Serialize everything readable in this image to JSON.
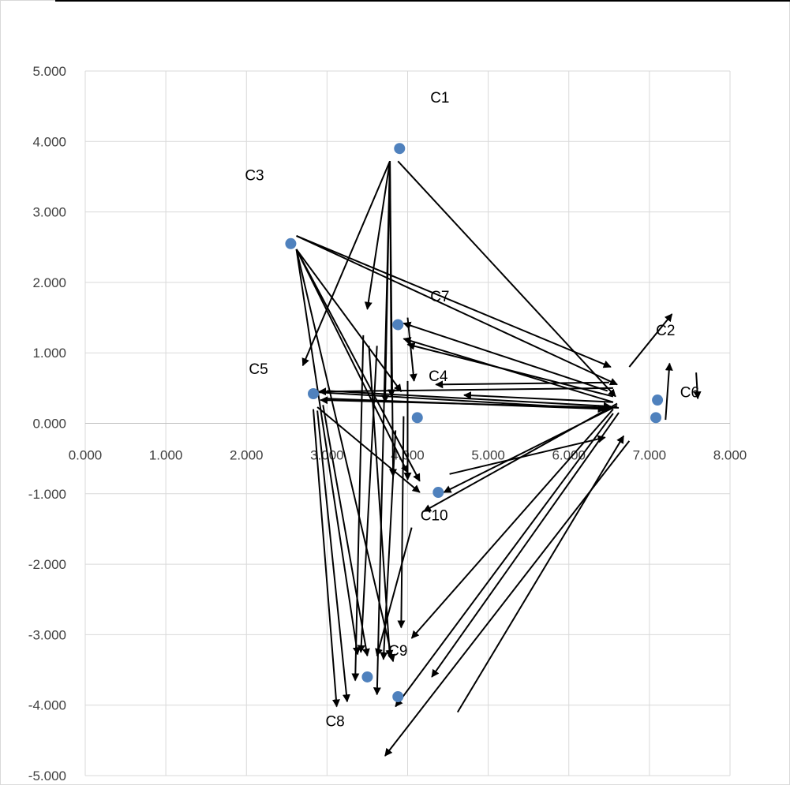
{
  "chart_data": {
    "type": "scatter",
    "title": "",
    "xlabel": "",
    "ylabel": "",
    "xlim": [
      0,
      8
    ],
    "ylim": [
      -5,
      5
    ],
    "x_ticks": [
      0,
      1,
      2,
      3,
      4,
      5,
      6,
      7,
      8
    ],
    "x_tick_labels": [
      "0.000",
      "1.000",
      "2.000",
      "3.000",
      "4.000",
      "5.000",
      "6.000",
      "7.000",
      "8.000"
    ],
    "y_ticks": [
      5,
      4,
      3,
      2,
      1,
      0,
      -1,
      -2,
      -3,
      -4,
      -5
    ],
    "y_tick_labels": [
      "5.000",
      "4.000",
      "3.000",
      "2.000",
      "1.000",
      "0.000",
      "-1.000",
      "-2.000",
      "-3.000",
      "-4.000",
      "-5.000"
    ],
    "grid": true,
    "legend": "none",
    "marker_color": "#4f81bd",
    "arrow_color": "#000000",
    "points": [
      {
        "x": 3.9,
        "y": 3.9
      },
      {
        "x": 2.55,
        "y": 2.55
      },
      {
        "x": 3.88,
        "y": 1.4
      },
      {
        "x": 2.83,
        "y": 0.42
      },
      {
        "x": 4.12,
        "y": 0.08
      },
      {
        "x": 4.38,
        "y": -0.98
      },
      {
        "x": 7.1,
        "y": 0.33
      },
      {
        "x": 7.08,
        "y": 0.08
      },
      {
        "x": 3.5,
        "y": -3.6
      },
      {
        "x": 3.88,
        "y": -3.88
      }
    ],
    "labels": [
      {
        "text": "C1",
        "x": 4.4,
        "y": 4.55
      },
      {
        "text": "C3",
        "x": 2.1,
        "y": 3.45
      },
      {
        "text": "C7",
        "x": 4.4,
        "y": 1.73
      },
      {
        "text": "C2",
        "x": 7.2,
        "y": 1.25
      },
      {
        "text": "C5",
        "x": 2.15,
        "y": 0.7
      },
      {
        "text": "C4",
        "x": 4.38,
        "y": 0.6
      },
      {
        "text": "C6",
        "x": 7.5,
        "y": 0.37
      },
      {
        "text": "C10",
        "x": 4.33,
        "y": -1.38
      },
      {
        "text": "C9",
        "x": 3.88,
        "y": -3.3
      },
      {
        "text": "C8",
        "x": 3.1,
        "y": -4.3
      }
    ],
    "arrows": [
      {
        "from": [
          3.78,
          3.72
        ],
        "to": [
          2.7,
          0.82
        ]
      },
      {
        "from": [
          3.78,
          3.72
        ],
        "to": [
          3.5,
          1.62
        ]
      },
      {
        "from": [
          3.78,
          3.72
        ],
        "to": [
          3.8,
          0.38
        ]
      },
      {
        "from": [
          3.78,
          3.72
        ],
        "to": [
          3.72,
          0.3
        ]
      },
      {
        "from": [
          3.78,
          3.72
        ],
        "to": [
          3.82,
          -0.75
        ]
      },
      {
        "from": [
          3.78,
          3.72
        ],
        "to": [
          3.62,
          -3.85
        ]
      },
      {
        "from": [
          3.88,
          3.72
        ],
        "to": [
          6.58,
          0.38
        ]
      },
      {
        "from": [
          2.62,
          2.66
        ],
        "to": [
          6.52,
          0.8
        ]
      },
      {
        "from": [
          2.62,
          2.66
        ],
        "to": [
          6.6,
          0.55
        ]
      },
      {
        "from": [
          2.62,
          2.47
        ],
        "to": [
          4.0,
          -0.7
        ]
      },
      {
        "from": [
          2.62,
          2.47
        ],
        "to": [
          4.15,
          -0.82
        ]
      },
      {
        "from": [
          2.62,
          2.47
        ],
        "to": [
          3.38,
          -3.28
        ]
      },
      {
        "from": [
          2.62,
          2.47
        ],
        "to": [
          3.82,
          -3.38
        ]
      },
      {
        "from": [
          2.62,
          2.47
        ],
        "to": [
          3.92,
          0.45
        ]
      },
      {
        "from": [
          6.48,
          0.46
        ],
        "to": [
          3.95,
          1.42
        ]
      },
      {
        "from": [
          6.55,
          0.38
        ],
        "to": [
          4.0,
          1.12
        ]
      },
      {
        "from": [
          6.55,
          0.3
        ],
        "to": [
          3.95,
          1.2
        ]
      },
      {
        "from": [
          6.5,
          0.58
        ],
        "to": [
          4.35,
          0.55
        ]
      },
      {
        "from": [
          6.55,
          0.5
        ],
        "to": [
          2.9,
          0.45
        ]
      },
      {
        "from": [
          6.55,
          0.3
        ],
        "to": [
          4.7,
          0.4
        ]
      },
      {
        "from": [
          6.62,
          0.22
        ],
        "to": [
          2.92,
          0.33
        ]
      },
      {
        "from": [
          3.0,
          0.35
        ],
        "to": [
          6.5,
          0.2
        ]
      },
      {
        "from": [
          2.9,
          0.44
        ],
        "to": [
          6.45,
          0.2
        ]
      },
      {
        "from": [
          3.0,
          0.46
        ],
        "to": [
          6.52,
          0.24
        ]
      },
      {
        "from": [
          2.88,
          0.23
        ],
        "to": [
          4.15,
          -0.98
        ]
      },
      {
        "from": [
          2.83,
          0.2
        ],
        "to": [
          3.12,
          -4.02
        ]
      },
      {
        "from": [
          2.88,
          0.18
        ],
        "to": [
          3.25,
          -3.95
        ]
      },
      {
        "from": [
          2.95,
          0.26
        ],
        "to": [
          3.5,
          -3.3
        ]
      },
      {
        "from": [
          3.45,
          1.25
        ],
        "to": [
          3.35,
          -3.65
        ]
      },
      {
        "from": [
          3.52,
          1.1
        ],
        "to": [
          3.78,
          -3.32
        ]
      },
      {
        "from": [
          3.62,
          1.1
        ],
        "to": [
          3.42,
          -3.25
        ]
      },
      {
        "from": [
          3.85,
          -0.1
        ],
        "to": [
          3.7,
          -3.35
        ]
      },
      {
        "from": [
          3.95,
          0.1
        ],
        "to": [
          3.92,
          -2.9
        ]
      },
      {
        "from": [
          4.0,
          1.5
        ],
        "to": [
          4.08,
          0.6
        ]
      },
      {
        "from": [
          4.0,
          0.6
        ],
        "to": [
          4.0,
          -0.8
        ]
      },
      {
        "from": [
          4.05,
          -1.48
        ],
        "to": [
          3.62,
          -3.3
        ]
      },
      {
        "from": [
          6.6,
          0.25
        ],
        "to": [
          4.45,
          -0.98
        ]
      },
      {
        "from": [
          6.6,
          0.28
        ],
        "to": [
          4.2,
          -1.25
        ]
      },
      {
        "from": [
          4.52,
          -0.72
        ],
        "to": [
          6.45,
          -0.2
        ]
      },
      {
        "from": [
          6.55,
          0.2
        ],
        "to": [
          4.05,
          -3.05
        ]
      },
      {
        "from": [
          6.55,
          0.14
        ],
        "to": [
          3.85,
          -4.02
        ]
      },
      {
        "from": [
          6.62,
          0.15
        ],
        "to": [
          4.3,
          -3.6
        ]
      },
      {
        "from": [
          4.62,
          -4.1
        ],
        "to": [
          6.68,
          -0.18
        ]
      },
      {
        "from": [
          6.75,
          -0.25
        ],
        "to": [
          3.72,
          -4.72
        ]
      },
      {
        "from": [
          6.75,
          0.8
        ],
        "to": [
          7.28,
          1.55
        ]
      },
      {
        "from": [
          7.2,
          0.05
        ],
        "to": [
          7.25,
          0.85
        ]
      },
      {
        "from": [
          7.58,
          0.72
        ],
        "to": [
          7.6,
          0.35
        ]
      }
    ]
  }
}
